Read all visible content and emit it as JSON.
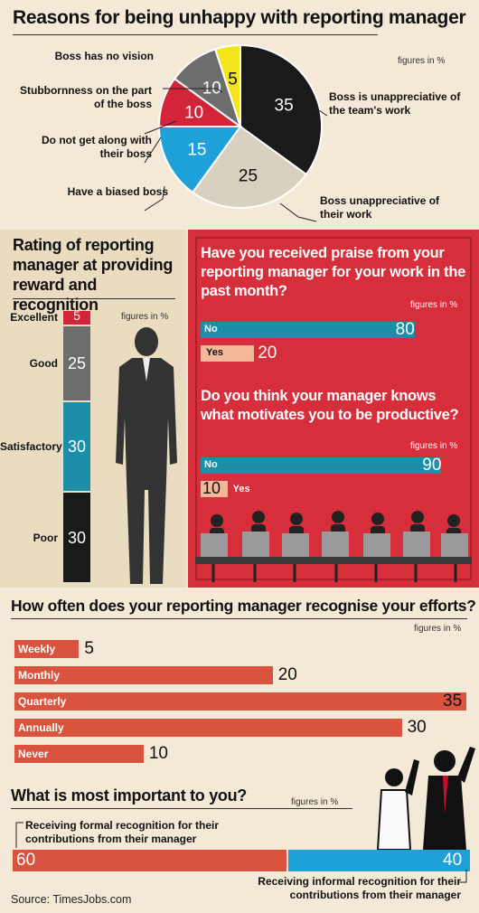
{
  "colors": {
    "dark": "#1a1a1a",
    "grey": "#6d6d6d",
    "red": "#d3253a",
    "blue": "#1ea0d8",
    "yellow": "#f4e51b",
    "beige": "#d8d1c0",
    "orange": "#d9533e",
    "teal": "#1c8ea8",
    "peach": "#f3b89a",
    "panel_red": "#d62e3b",
    "bg": "#f3e9d6"
  },
  "source": "Source: TimesJobs.com",
  "chart_data": [
    {
      "type": "pie",
      "title": "Reasons for being unhappy with reporting manager",
      "note": "figures in %",
      "slices": [
        {
          "label": "Boss is unappreciative of the team's work",
          "value": 35,
          "color": "#1a1a1a"
        },
        {
          "label": "Boss unappreciative of their work",
          "value": 25,
          "color": "#d8d1c0"
        },
        {
          "label": "Have a biased boss",
          "value": 15,
          "color": "#1ea0d8"
        },
        {
          "label": "Do not get along with their boss",
          "value": 10,
          "color": "#d3253a"
        },
        {
          "label": "Stubbornness on the part of the boss",
          "value": 10,
          "color": "#6d6d6d"
        },
        {
          "label": "Boss has no vision",
          "value": 5,
          "color": "#f4e51b"
        }
      ]
    },
    {
      "type": "bar",
      "title": "Rating of reporting manager at providing reward and recognition",
      "note": "figures in %",
      "categories": [
        "Excellent",
        "Good",
        "Satisfactory",
        "Poor"
      ],
      "values": [
        5,
        25,
        30,
        30
      ],
      "colors": [
        "#d3253a",
        "#6d6d6d",
        "#1c8ea8",
        "#1a1a1a"
      ]
    },
    {
      "type": "bar",
      "title": "Have you received praise from your reporting manager for your work in the past month?",
      "note": "figures in %",
      "categories": [
        "No",
        "Yes"
      ],
      "values": [
        80,
        20
      ],
      "colors": [
        "#1c8ea8",
        "#f3b89a"
      ]
    },
    {
      "type": "bar",
      "title": "Do you think your manager knows what motivates you to be productive?",
      "note": "figures in %",
      "categories": [
        "No",
        "Yes"
      ],
      "values": [
        90,
        10
      ],
      "colors": [
        "#1c8ea8",
        "#f3b89a"
      ]
    },
    {
      "type": "bar",
      "title": "How often does your reporting manager recognise your efforts?",
      "note": "figures in %",
      "categories": [
        "Weekly",
        "Monthly",
        "Quarterly",
        "Annually",
        "Never"
      ],
      "values": [
        5,
        20,
        35,
        30,
        10
      ],
      "xlim": [
        0,
        35
      ]
    },
    {
      "type": "bar",
      "title": "What is most important to you?",
      "note": "figures in %",
      "categories": [
        "Receiving formal recognition for their contributions from their manager",
        "Receiving informal recognition for their contributions from their manager"
      ],
      "values": [
        60,
        40
      ],
      "colors": [
        "#d9533e",
        "#1ea0d8"
      ]
    }
  ]
}
